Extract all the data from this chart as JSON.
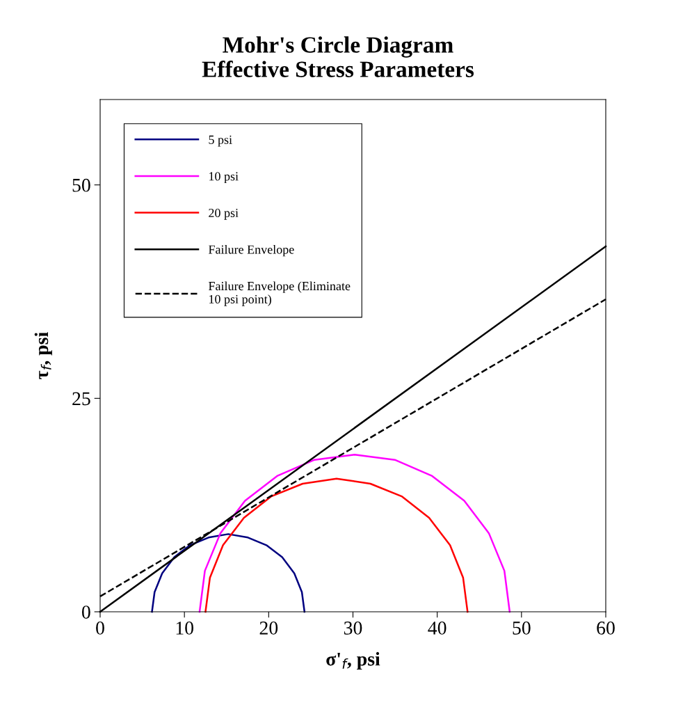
{
  "chart_data": {
    "type": "line",
    "title": "Mohr's Circle Diagram\nEffective Stress Parameters",
    "xlabel": "σ'$_{f}$, psi",
    "ylabel": "τ$_{f}$, psi",
    "xlim": [
      0,
      60
    ],
    "ylim": [
      0,
      60
    ],
    "xticks": [
      0,
      10,
      20,
      30,
      40,
      50,
      60
    ],
    "yticks": [
      0,
      25,
      50
    ],
    "grid": false,
    "legend": "top left",
    "marker": "none",
    "series": [
      {
        "name": "5 psi",
        "color": "#000080",
        "line_style": "solid",
        "x": [
          24.25,
          23.94,
          23.04,
          21.6,
          19.73,
          17.54,
          15.2,
          12.86,
          10.67,
          8.8,
          7.36,
          6.46,
          6.15
        ],
        "values": [
          0,
          2.3,
          4.5,
          6.4,
          7.8,
          8.7,
          9.1,
          8.7,
          7.8,
          6.4,
          4.5,
          2.3,
          0
        ]
      },
      {
        "name": "10 psi",
        "color": "#ff00ff",
        "line_style": "solid",
        "x": [
          48.6,
          47.97,
          46.13,
          43.21,
          39.4,
          34.97,
          30.2,
          25.43,
          21.0,
          17.19,
          14.27,
          12.43,
          11.8
        ],
        "values": [
          0,
          4.8,
          9.2,
          13.0,
          15.9,
          17.8,
          18.4,
          17.8,
          15.9,
          13.0,
          9.2,
          4.8,
          0
        ]
      },
      {
        "name": "20 psi",
        "color": "#ff0000",
        "line_style": "solid",
        "x": [
          43.6,
          43.07,
          41.52,
          39.04,
          35.83,
          32.07,
          28.05,
          24.03,
          20.27,
          17.06,
          14.58,
          13.03,
          12.5
        ],
        "values": [
          0,
          4.0,
          7.8,
          11.0,
          13.5,
          15.0,
          15.6,
          15.0,
          13.5,
          11.0,
          7.8,
          4.0,
          0
        ]
      },
      {
        "name": "Failure Envelope",
        "color": "#000000",
        "line_style": "solid",
        "x": [
          0,
          60
        ],
        "values": [
          0,
          42.8
        ]
      },
      {
        "name": "Failure Envelope (Eliminate\n10 psi point)",
        "color": "#000000",
        "line_style": "dashed",
        "x": [
          0,
          60
        ],
        "values": [
          1.8,
          36.6
        ]
      }
    ]
  }
}
